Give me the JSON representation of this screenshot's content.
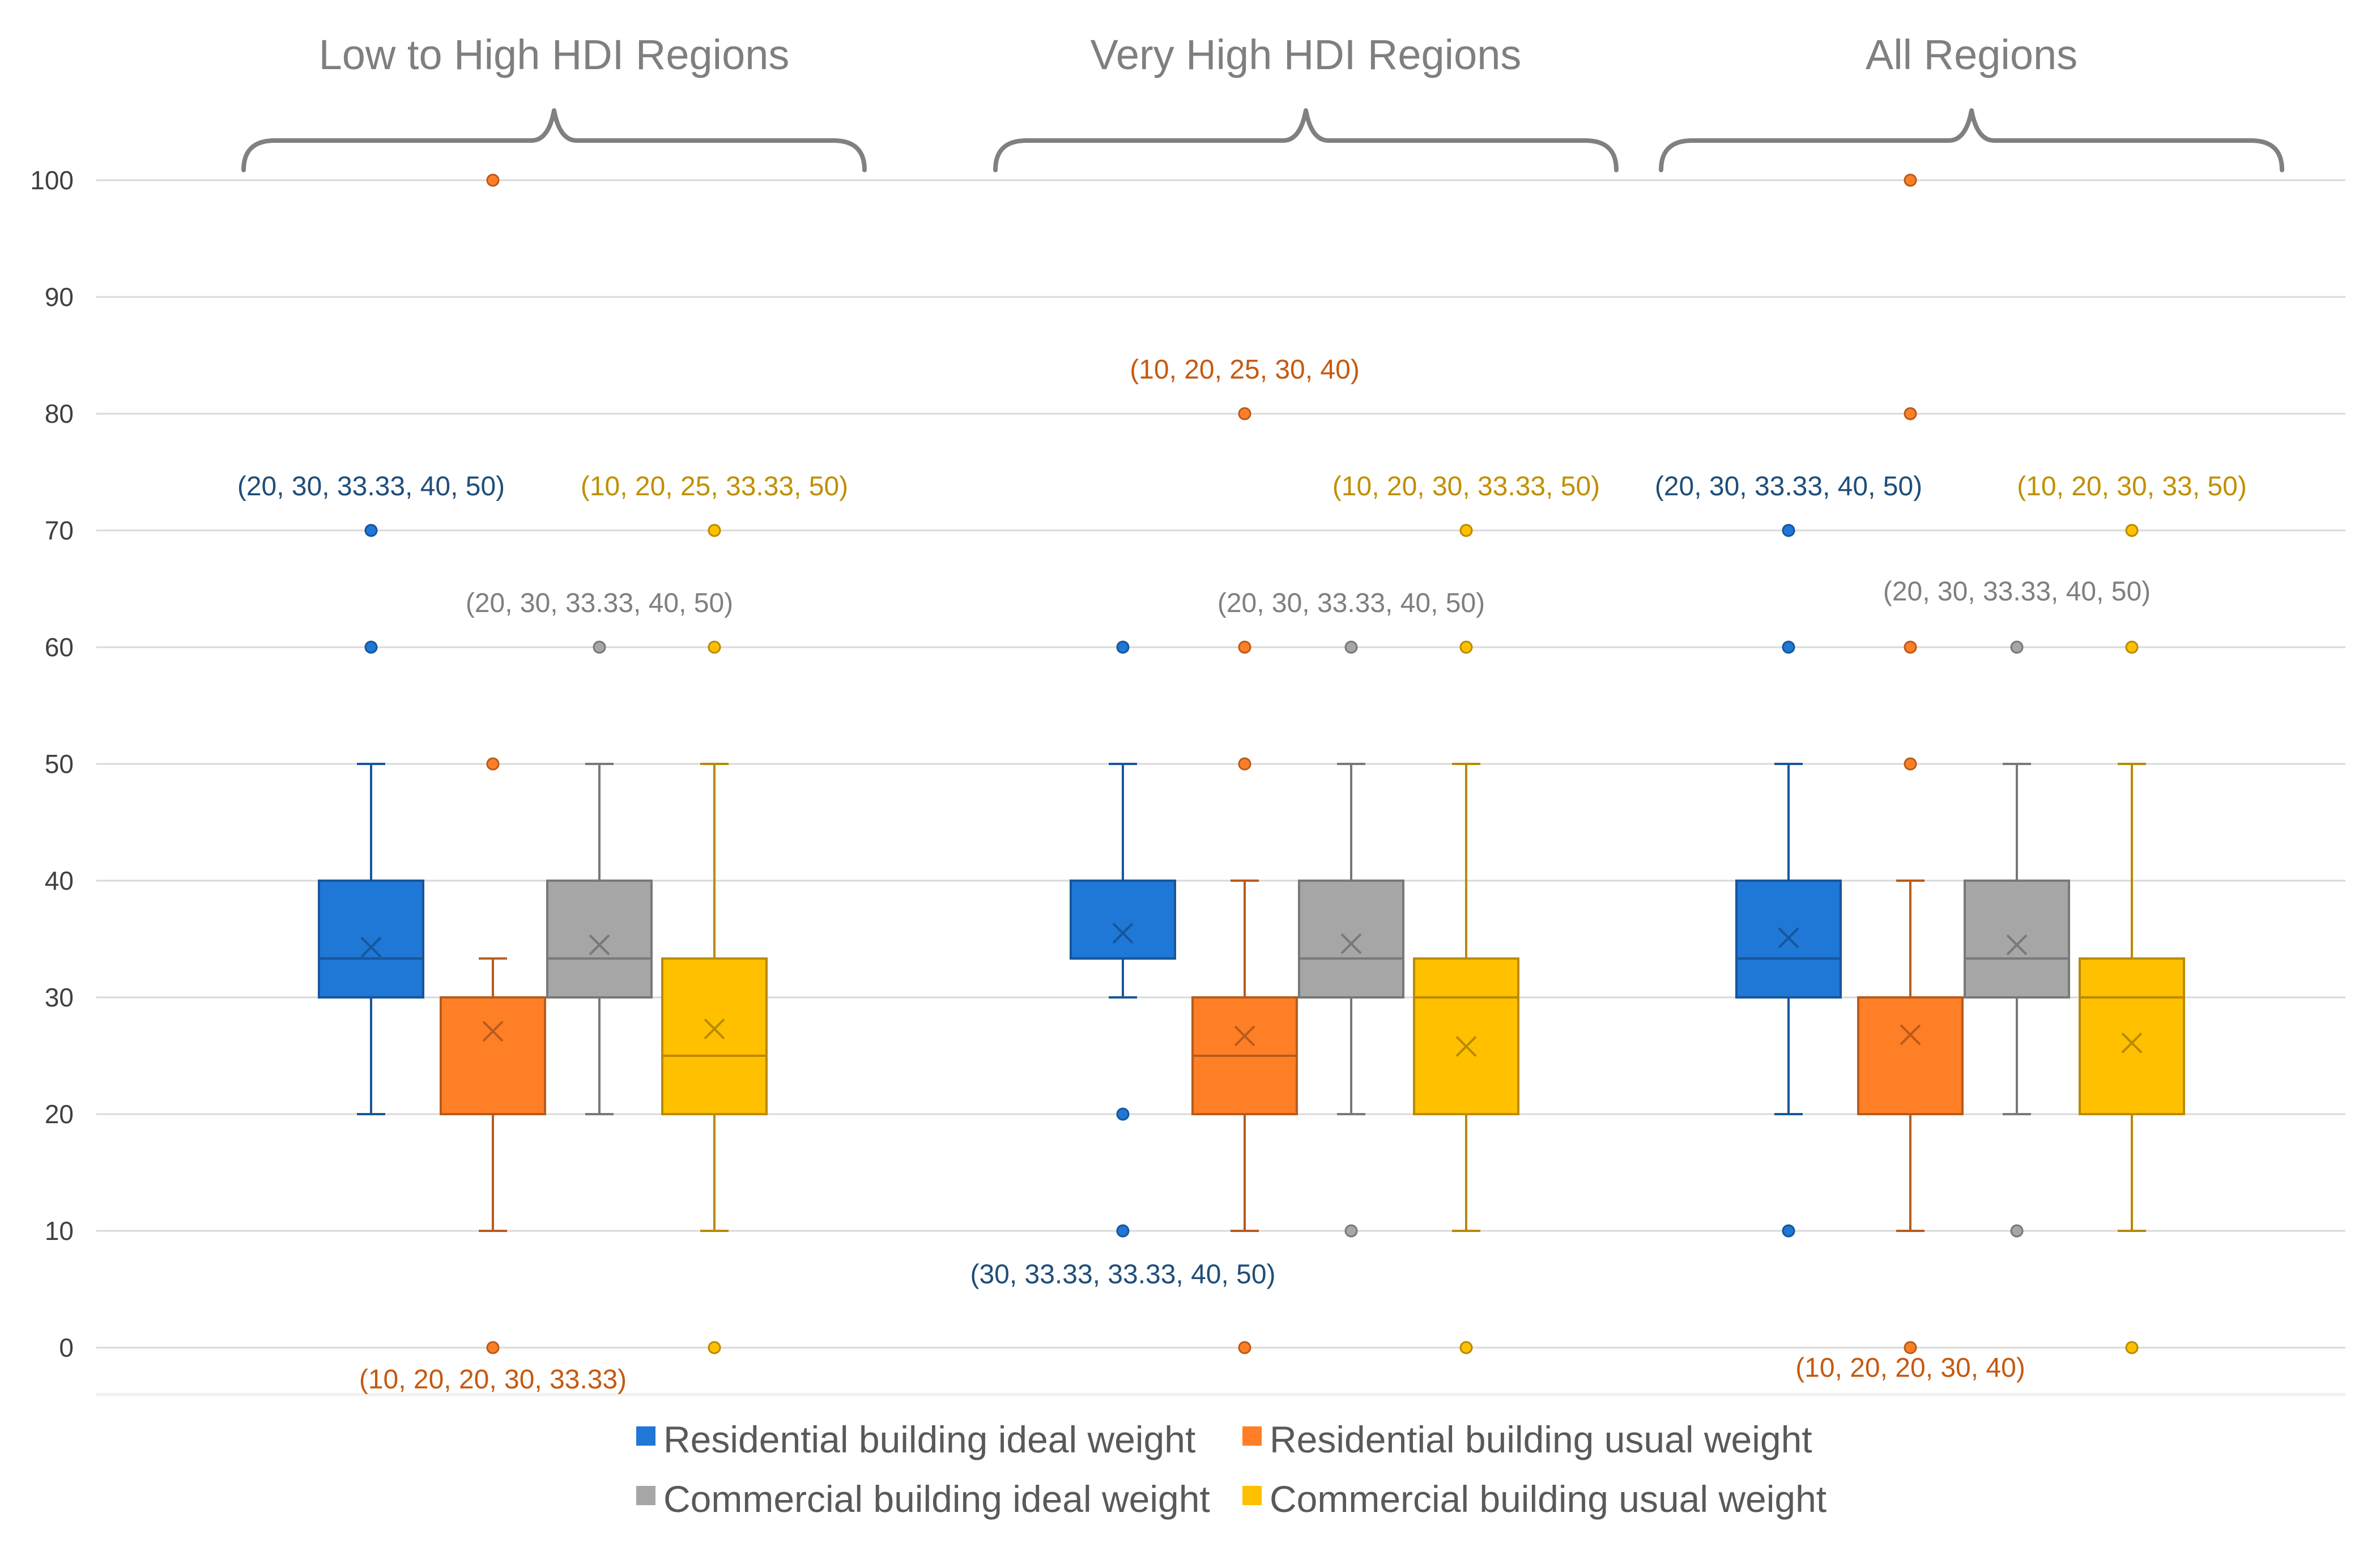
{
  "chart_data": {
    "type": "boxplot",
    "title": "",
    "xlabel": "",
    "ylabel": "",
    "ylim": [
      0,
      100
    ],
    "yticks": [
      0,
      10,
      20,
      30,
      40,
      50,
      60,
      70,
      80,
      90,
      100
    ],
    "grid": true,
    "legend_position": "bottom",
    "series": [
      {
        "name": "Residential building ideal weight",
        "color": "#1F77D6"
      },
      {
        "name": "Residential building usual weight",
        "color": "#FF7F27"
      },
      {
        "name": "Commercial building ideal weight",
        "color": "#A6A6A6"
      },
      {
        "name": "Commercial building usual weight",
        "color": "#FFC000"
      }
    ],
    "groups": [
      {
        "name": "Low to High HDI Regions",
        "boxes": [
          {
            "series": 0,
            "whisker_low": 20,
            "q1": 30,
            "median": 33.33,
            "q3": 40,
            "whisker_high": 50,
            "mean": 34.3,
            "outliers": [
              60,
              70
            ]
          },
          {
            "series": 1,
            "whisker_low": 10,
            "q1": 20,
            "median": 20,
            "q3": 30,
            "whisker_high": 33.33,
            "mean": 27.1,
            "outliers": [
              0,
              50,
              100
            ]
          },
          {
            "series": 2,
            "whisker_low": 20,
            "q1": 30,
            "median": 33.33,
            "q3": 40,
            "whisker_high": 50,
            "mean": 34.5,
            "outliers": [
              60
            ]
          },
          {
            "series": 3,
            "whisker_low": 10,
            "q1": 20,
            "median": 25,
            "q3": 33.33,
            "whisker_high": 50,
            "mean": 27.3,
            "outliers": [
              0,
              60,
              70
            ]
          }
        ],
        "annotations": [
          {
            "series": 0,
            "text": "(20, 30, 33.33, 40, 50)",
            "y": 73
          },
          {
            "series": 3,
            "text": "(10, 20, 25, 33.33, 50)",
            "y": 73
          },
          {
            "series": 2,
            "text": "(20, 30, 33.33, 40, 50)",
            "y": 63
          },
          {
            "series": 1,
            "text": "(10, 20, 20, 30, 33.33)",
            "y": -3.5
          }
        ]
      },
      {
        "name": "Very High HDI Regions",
        "boxes": [
          {
            "series": 0,
            "whisker_low": 30,
            "q1": 33.33,
            "median": 33.33,
            "q3": 40,
            "whisker_high": 50,
            "mean": 35.5,
            "outliers": [
              10,
              20,
              60
            ]
          },
          {
            "series": 1,
            "whisker_low": 10,
            "q1": 20,
            "median": 25,
            "q3": 30,
            "whisker_high": 40,
            "mean": 26.7,
            "outliers": [
              0,
              50,
              60,
              80
            ]
          },
          {
            "series": 2,
            "whisker_low": 20,
            "q1": 30,
            "median": 33.33,
            "q3": 40,
            "whisker_high": 50,
            "mean": 34.6,
            "outliers": [
              10,
              60
            ]
          },
          {
            "series": 3,
            "whisker_low": 10,
            "q1": 20,
            "median": 30,
            "q3": 33.33,
            "whisker_high": 50,
            "mean": 25.8,
            "outliers": [
              0,
              60,
              70
            ]
          }
        ],
        "annotations": [
          {
            "series": 1,
            "text": "(10, 20, 25, 30, 40)",
            "y": 83
          },
          {
            "series": 3,
            "text": "(10, 20, 30, 33.33, 50)",
            "y": 73
          },
          {
            "series": 2,
            "text": "(20, 30, 33.33, 40, 50)",
            "y": 63
          },
          {
            "series": 0,
            "text": "(30, 33.33, 33.33, 40, 50)",
            "y": 5.5
          }
        ]
      },
      {
        "name": "All Regions",
        "boxes": [
          {
            "series": 0,
            "whisker_low": 20,
            "q1": 30,
            "median": 33.33,
            "q3": 40,
            "whisker_high": 50,
            "mean": 35.1,
            "outliers": [
              10,
              60,
              70
            ]
          },
          {
            "series": 1,
            "whisker_low": 10,
            "q1": 20,
            "median": 20,
            "q3": 30,
            "whisker_high": 40,
            "mean": 26.8,
            "outliers": [
              0,
              50,
              60,
              80,
              100
            ]
          },
          {
            "series": 2,
            "whisker_low": 20,
            "q1": 30,
            "median": 33.33,
            "q3": 40,
            "whisker_high": 50,
            "mean": 34.5,
            "outliers": [
              10,
              60
            ]
          },
          {
            "series": 3,
            "whisker_low": 10,
            "q1": 20,
            "median": 30,
            "q3": 33.33,
            "whisker_high": 50,
            "mean": 26.1,
            "outliers": [
              0,
              60,
              70
            ]
          }
        ],
        "annotations": [
          {
            "series": 0,
            "text": "(20, 30, 33.33, 40, 50)",
            "y": 73
          },
          {
            "series": 3,
            "text": "(10, 20, 30, 33, 50)",
            "y": 73
          },
          {
            "series": 2,
            "text": "(20, 30, 33.33, 40, 50)",
            "y": 64
          },
          {
            "series": 1,
            "text": "(10, 20, 20, 30, 40)",
            "y": -2.5
          }
        ]
      }
    ],
    "annotation_colors": [
      "#1F4E79",
      "#C55A11",
      "#7F7F7F",
      "#BF9000"
    ]
  }
}
